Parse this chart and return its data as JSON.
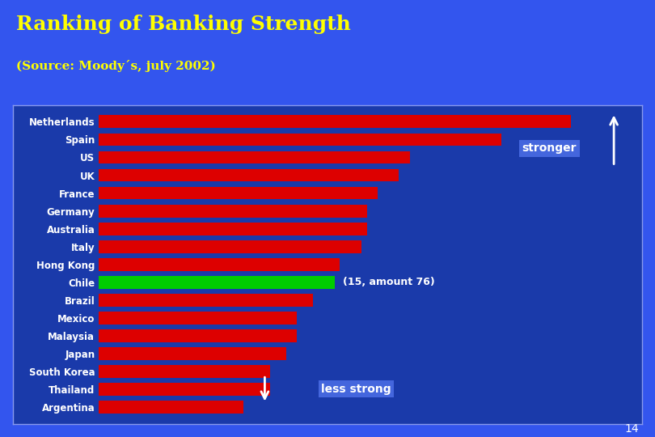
{
  "title": "Ranking of Banking Strength",
  "subtitle": "(Source: Moody´s, july 2002)",
  "title_color": "#FFFF00",
  "subtitle_color": "#FFFF00",
  "background_color": "#1A33CC",
  "header_bg": "#1A33CC",
  "chart_bg_color": "#1a3aaa",
  "outer_bg": "#3355EE",
  "categories": [
    "Netherlands",
    "Spain",
    "US",
    "UK",
    "France",
    "Germany",
    "Australia",
    "Italy",
    "Hong Kong",
    "Chile",
    "Brazil",
    "Mexico",
    "Malaysia",
    "Japan",
    "South Korea",
    "Thailand",
    "Argentina"
  ],
  "values": [
    88,
    75,
    58,
    56,
    52,
    50,
    50,
    49,
    45,
    44,
    40,
    37,
    37,
    35,
    32,
    32,
    27
  ],
  "bar_colors": [
    "#DD0000",
    "#DD0000",
    "#DD0000",
    "#DD0000",
    "#DD0000",
    "#DD0000",
    "#DD0000",
    "#DD0000",
    "#DD0000",
    "#00CC00",
    "#DD0000",
    "#DD0000",
    "#DD0000",
    "#DD0000",
    "#DD0000",
    "#DD0000",
    "#DD0000"
  ],
  "chile_label": "(15, amount 76)",
  "stronger_label": "stronger",
  "less_strong_label": "less strong",
  "page_number": "14",
  "stronger_box_color": "#4466DD",
  "less_strong_box_color": "#4466DD"
}
